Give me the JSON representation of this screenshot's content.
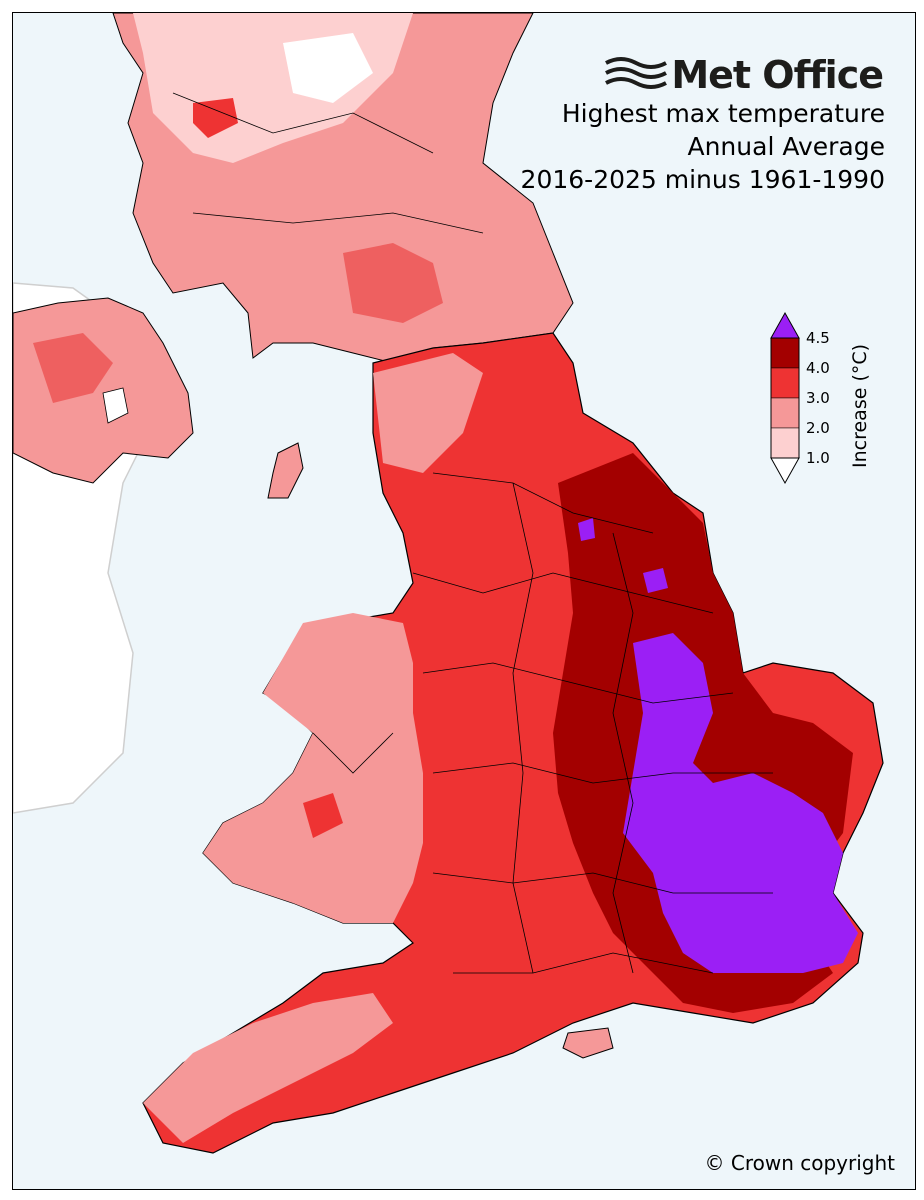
{
  "brand": {
    "name": "Met Office",
    "logo_icon": "met-office-wave-icon"
  },
  "titles": [
    "Highest max temperature",
    "Annual Average",
    "2016-2025 minus 1961-1990"
  ],
  "colorbar": {
    "label": "Increase (°C)",
    "ticks": [
      "1.0",
      "2.0",
      "3.0",
      "4.0",
      "4.5"
    ],
    "bins": [
      {
        "from": 1.0,
        "to": 2.0,
        "color": "#fdd0d0"
      },
      {
        "from": 2.0,
        "to": 3.0,
        "color": "#f59898"
      },
      {
        "from": 3.0,
        "to": 4.0,
        "color": "#ee3333"
      },
      {
        "from": 4.0,
        "to": 4.5,
        "color": "#a30000"
      }
    ],
    "under_color": "#ffffff",
    "over_color": "#9b1ff5"
  },
  "colors": {
    "sea": "#eef6fa",
    "outside_land": "#ffffff",
    "borders": "#000000"
  },
  "copyright": "© Crown copyright"
}
